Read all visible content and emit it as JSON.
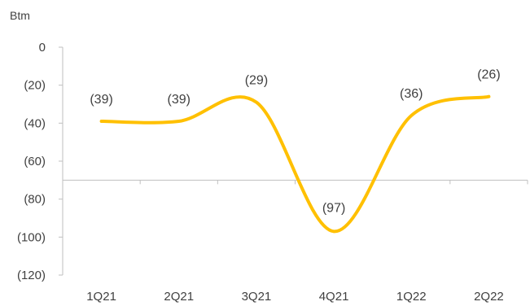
{
  "chart_data": {
    "type": "line",
    "title": "",
    "ylabel": "Btm",
    "xlabel": "",
    "categories": [
      "1Q21",
      "2Q21",
      "3Q21",
      "4Q21",
      "1Q22",
      "2Q22"
    ],
    "series": [
      {
        "values": [
          -39,
          -39,
          -29,
          -97,
          -36,
          -26
        ]
      }
    ],
    "data_labels": [
      "(39)",
      "(39)",
      "(29)",
      "(97)",
      "(36)",
      "(26)"
    ],
    "y_ticks": [
      0,
      -20,
      -40,
      -60,
      -80,
      -100,
      -120
    ],
    "y_tick_labels": [
      "0",
      "(20)",
      "(40)",
      "(60)",
      "(80)",
      "(100)",
      "(120)"
    ],
    "ylim": [
      -120,
      0
    ],
    "x_axis_crosses_at": -70,
    "smooth": true,
    "grid": false,
    "legend": "none",
    "colors": {
      "line": "#FFC000",
      "axis": "#BFBFBF",
      "text": "#404040"
    }
  }
}
